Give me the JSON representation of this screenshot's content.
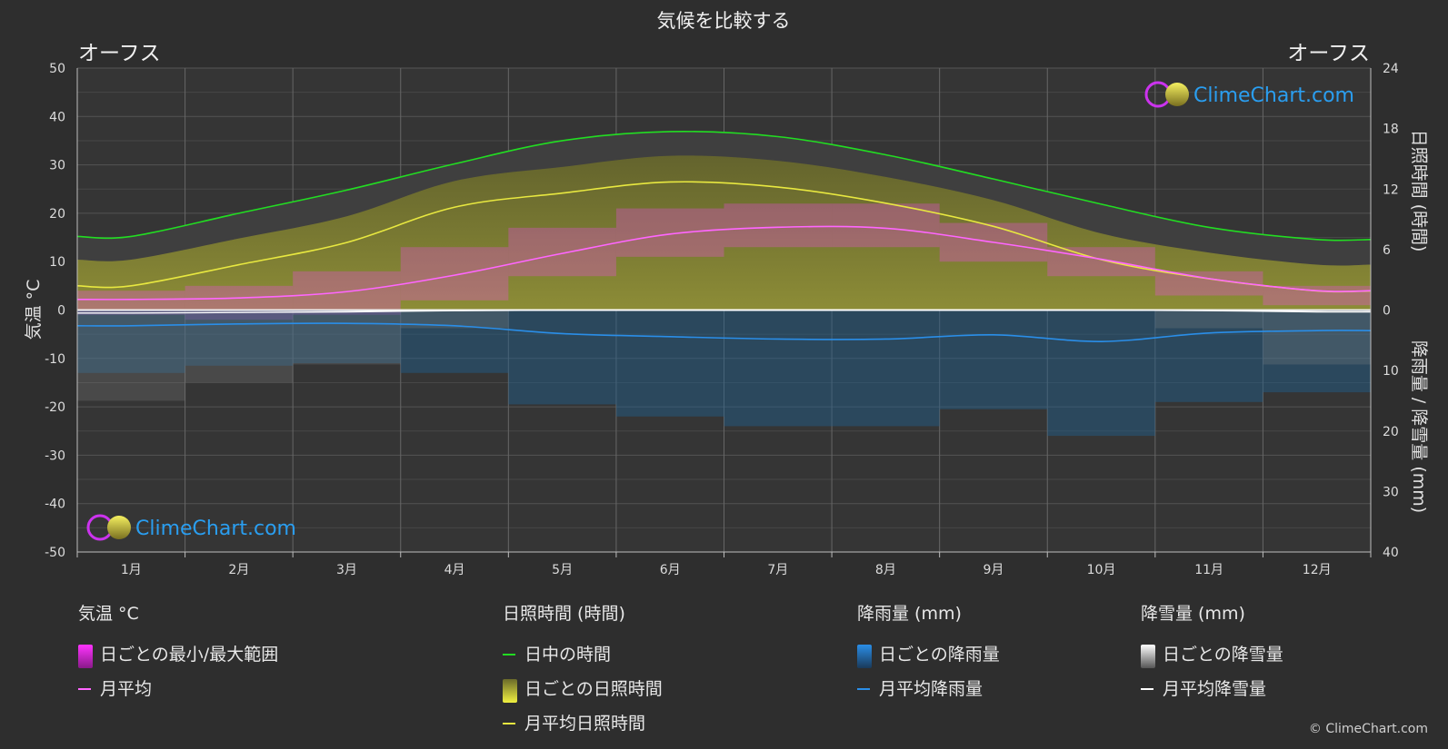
{
  "title": "気候を比較する",
  "city_left": "オーフス",
  "city_right": "オーフス",
  "copyright": "© ClimeChart.com",
  "colors": {
    "background": "#2e2e2e",
    "daylight": "#22dd22",
    "sunshine": "#e8e840",
    "temp_mean": "#ff66ff",
    "rain": "#2a8ee8",
    "snow": "#ffffff"
  },
  "chart_data": {
    "type": "line",
    "title": "気候を比較する",
    "x_categories": [
      "1月",
      "2月",
      "3月",
      "4月",
      "5月",
      "6月",
      "7月",
      "8月",
      "9月",
      "10月",
      "11月",
      "12月"
    ],
    "y_left": {
      "label": "気温 °C",
      "ticks": [
        50,
        40,
        30,
        20,
        10,
        0,
        -10,
        -20,
        -30,
        -40,
        -50
      ],
      "range": [
        -50,
        50
      ]
    },
    "y_right_top": {
      "label": "日照時間 (時間)",
      "ticks": [
        24,
        18,
        12,
        6,
        0
      ],
      "range": [
        0,
        24
      ]
    },
    "y_right_bottom": {
      "label": "降雨量 / 降雪量 (mm)",
      "ticks": [
        0,
        10,
        20,
        30,
        40
      ],
      "range": [
        0,
        40
      ]
    },
    "series": [
      {
        "name": "日中の時間",
        "axis": "hours",
        "values": [
          7.3,
          9.6,
          11.9,
          14.5,
          16.8,
          17.7,
          17.2,
          15.4,
          13.0,
          10.5,
          8.2,
          7.0
        ]
      },
      {
        "name": "月平均日照時間",
        "axis": "hours",
        "values": [
          2.4,
          4.5,
          6.7,
          10.2,
          11.6,
          12.7,
          12.2,
          10.6,
          8.3,
          5.0,
          3.1,
          1.9
        ]
      },
      {
        "name": "月平均",
        "axis": "temp",
        "values": [
          2.2,
          2.5,
          3.8,
          7.2,
          11.7,
          15.7,
          17.1,
          16.9,
          14.0,
          10.5,
          6.5,
          4.0
        ]
      },
      {
        "name": "月平均降雨量",
        "axis": "precip",
        "values": [
          2.6,
          2.3,
          2.2,
          2.6,
          3.9,
          4.4,
          4.8,
          4.8,
          4.1,
          5.2,
          3.8,
          3.4
        ]
      },
      {
        "name": "月平均降雪量",
        "axis": "precip",
        "values": [
          0.5,
          0.4,
          0.3,
          0.1,
          0.0,
          0.0,
          0.0,
          0.0,
          0.0,
          0.0,
          0.1,
          0.3
        ]
      }
    ],
    "daily_range_bands": {
      "name": "日ごとの最小/最大範囲",
      "min": [
        -1,
        -2,
        -1,
        2,
        7,
        11,
        13,
        13,
        10,
        7,
        3,
        1
      ],
      "max": [
        4,
        5,
        8,
        13,
        17,
        21,
        22,
        22,
        18,
        13,
        8,
        5
      ]
    },
    "grid": true
  },
  "legend": {
    "temperature": {
      "heading": "気温 °C",
      "items": [
        "日ごとの最小/最大範囲",
        "月平均"
      ]
    },
    "sunshine": {
      "heading": "日照時間 (時間)",
      "items": [
        "日中の時間",
        "日ごとの日照時間",
        "月平均日照時間"
      ]
    },
    "rain": {
      "heading": "降雨量 (mm)",
      "items": [
        "日ごとの降雨量",
        "月平均降雨量"
      ]
    },
    "snow": {
      "heading": "降雪量 (mm)",
      "items": [
        "日ごとの降雪量",
        "月平均降雪量"
      ]
    }
  },
  "logo_text": "ClimeChart.com"
}
